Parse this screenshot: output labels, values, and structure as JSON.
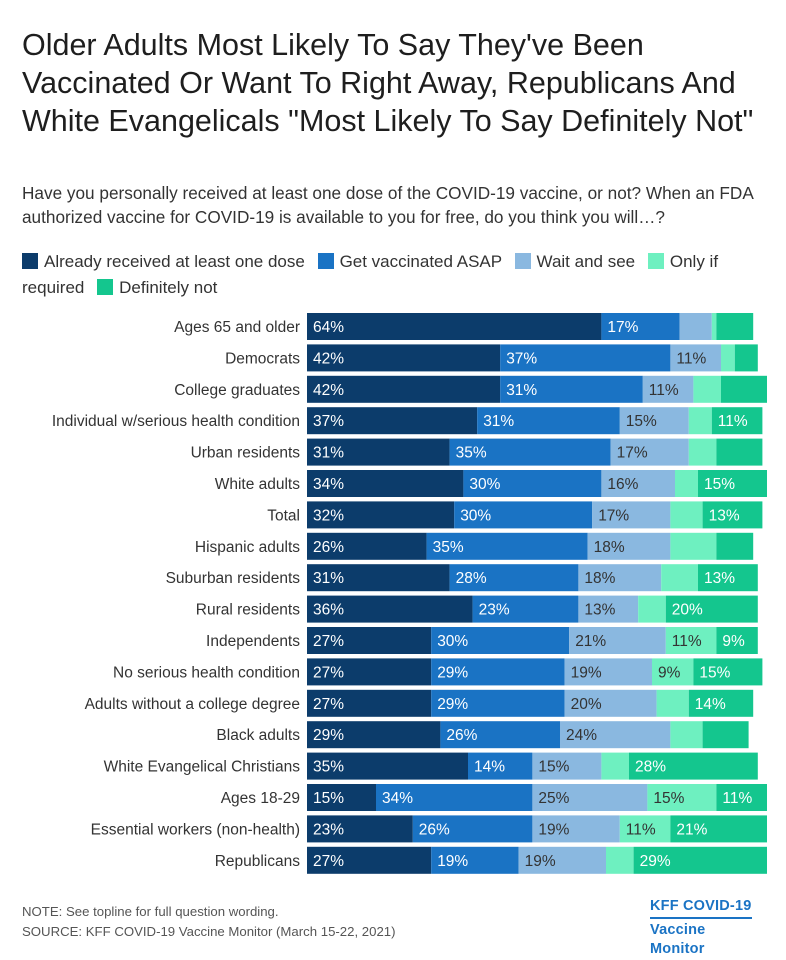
{
  "title": "Older Adults Most Likely To Say They've Been Vaccinated Or Want To Right Away, Republicans And White Evangelicals \"Most Likely To Say Definitely Not\"",
  "subtitle": "Have you personally received at least one dose of the COVID-19 vaccine, or not? When an FDA authorized vaccine for COVID-19 is available to you for free, do you think you will…?",
  "note": "NOTE: See topline for full question wording.",
  "source": "SOURCE: KFF COVID-19 Vaccine Monitor (March 15-22, 2021)",
  "logo": {
    "line1": "KFF COVID-19",
    "line2": "Vaccine Monitor"
  },
  "colors": {
    "Already received at least one dose": "#0c3c6b",
    "Get vaccinated ASAP": "#1a73c4",
    "Wait and see": "#8ab8e0",
    "Only if required": "#6ef0c0",
    "Definitely not": "#14c68e"
  },
  "chart_data": {
    "type": "bar",
    "orientation": "horizontal",
    "stacked": true,
    "title": "Older Adults Most Likely To Say They've Been Vaccinated Or Want To Right Away, Republicans And White Evangelicals \"Most Likely To Say Definitely Not\"",
    "xlim": [
      0,
      100
    ],
    "legend_position": "top",
    "categories": [
      "Ages 65 and older",
      "Democrats",
      "College graduates",
      "Individual w/serious health condition",
      "Urban residents",
      "White adults",
      "Total",
      "Hispanic adults",
      "Suburban residents",
      "Rural residents",
      "Independents",
      "No serious health condition",
      "Adults without a college degree",
      "Black adults",
      "White Evangelical Christians",
      "Ages 18-29",
      "Essential workers (non-health)",
      "Republicans"
    ],
    "series": [
      {
        "name": "Already received at least one dose",
        "values": [
          64,
          42,
          42,
          37,
          31,
          34,
          32,
          26,
          31,
          36,
          27,
          27,
          27,
          29,
          35,
          15,
          23,
          27
        ]
      },
      {
        "name": "Get vaccinated ASAP",
        "values": [
          17,
          37,
          31,
          31,
          35,
          30,
          30,
          35,
          28,
          23,
          30,
          29,
          29,
          26,
          14,
          34,
          26,
          19
        ]
      },
      {
        "name": "Wait and see",
        "values": [
          7,
          11,
          11,
          15,
          17,
          16,
          17,
          18,
          18,
          13,
          21,
          19,
          20,
          24,
          15,
          25,
          19,
          19
        ]
      },
      {
        "name": "Only if required",
        "values": [
          1,
          3,
          6,
          5,
          6,
          5,
          7,
          10,
          8,
          6,
          11,
          9,
          7,
          7,
          6,
          15,
          11,
          6
        ]
      },
      {
        "name": "Definitely not",
        "values": [
          8,
          5,
          10,
          11,
          10,
          15,
          13,
          8,
          13,
          20,
          9,
          15,
          14,
          10,
          28,
          11,
          21,
          29
        ]
      }
    ],
    "labels": [
      [
        "64%",
        "17%",
        "",
        "",
        ""
      ],
      [
        "42%",
        "37%",
        "11%",
        "",
        ""
      ],
      [
        "42%",
        "31%",
        "11%",
        "",
        ""
      ],
      [
        "37%",
        "31%",
        "15%",
        "",
        "11%"
      ],
      [
        "31%",
        "35%",
        "17%",
        "",
        ""
      ],
      [
        "34%",
        "30%",
        "16%",
        "",
        "15%"
      ],
      [
        "32%",
        "30%",
        "17%",
        "",
        "13%"
      ],
      [
        "26%",
        "35%",
        "18%",
        "",
        ""
      ],
      [
        "31%",
        "28%",
        "18%",
        "",
        "13%"
      ],
      [
        "36%",
        "23%",
        "13%",
        "",
        "20%"
      ],
      [
        "27%",
        "30%",
        "21%",
        "11%",
        "9%"
      ],
      [
        "27%",
        "29%",
        "19%",
        "9%",
        "15%"
      ],
      [
        "27%",
        "29%",
        "20%",
        "",
        "14%"
      ],
      [
        "29%",
        "26%",
        "24%",
        "",
        ""
      ],
      [
        "35%",
        "14%",
        "15%",
        "",
        "28%"
      ],
      [
        "15%",
        "34%",
        "25%",
        "15%",
        "11%"
      ],
      [
        "23%",
        "26%",
        "19%",
        "11%",
        "21%"
      ],
      [
        "27%",
        "19%",
        "19%",
        "",
        "29%"
      ]
    ],
    "label_colors": [
      "#ffffff",
      "#ffffff",
      "#333333",
      "#333333",
      "#ffffff"
    ]
  }
}
